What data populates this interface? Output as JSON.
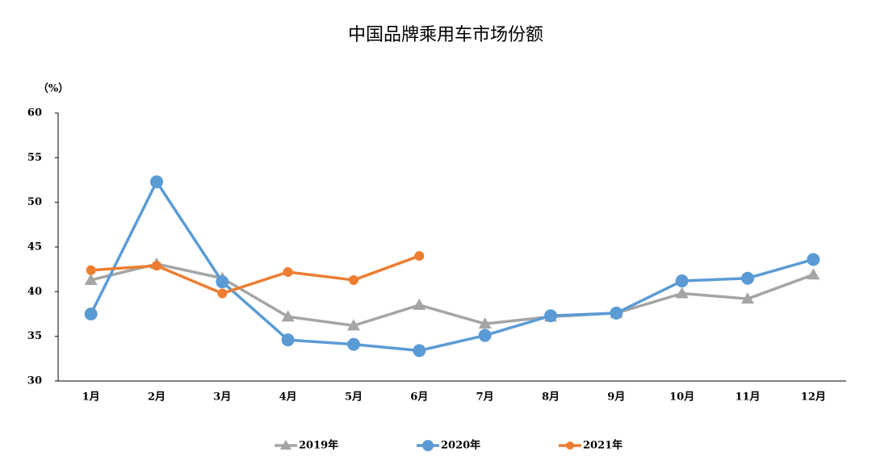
{
  "chart_data": {
    "type": "line",
    "title": "中国品牌乘用车市场份额",
    "y_label": "（%）",
    "categories": [
      "1月",
      "2月",
      "3月",
      "4月",
      "5月",
      "6月",
      "7月",
      "8月",
      "9月",
      "10月",
      "11月",
      "12月"
    ],
    "series": [
      {
        "name": "2019年",
        "color": "#a5a5a5",
        "marker": "triangle",
        "values": [
          41.3,
          43.1,
          41.5,
          37.2,
          36.2,
          38.5,
          36.4,
          37.2,
          37.6,
          39.8,
          39.2,
          41.9
        ]
      },
      {
        "name": "2020年",
        "color": "#5b9bd5",
        "marker": "circle",
        "values": [
          37.5,
          52.3,
          41.1,
          34.6,
          34.1,
          33.4,
          35.1,
          37.3,
          37.6,
          41.2,
          41.5,
          43.6
        ]
      },
      {
        "name": "2021年",
        "color": "#ed7d31",
        "marker": "dot",
        "values": [
          42.4,
          42.9,
          39.8,
          42.2,
          41.3,
          44.0,
          null,
          null,
          null,
          null,
          null,
          null
        ]
      }
    ],
    "ylim": [
      30,
      60
    ],
    "yticks": [
      30,
      35,
      40,
      45,
      50,
      55,
      60
    ],
    "grid": false,
    "legend": "bottom"
  }
}
